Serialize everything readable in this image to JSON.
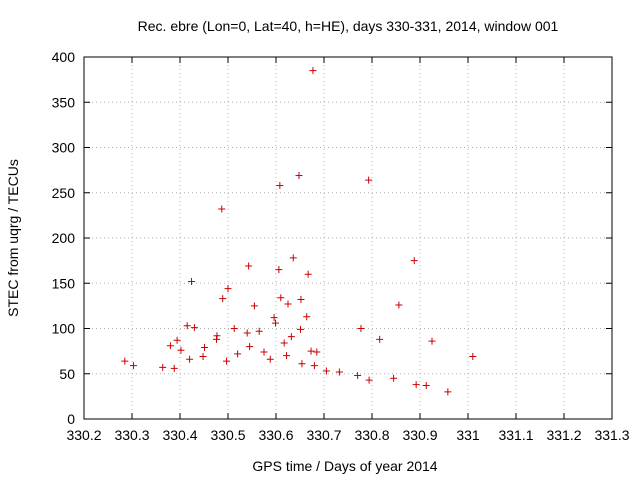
{
  "chart_data": {
    "type": "scatter",
    "title": "Rec. ebre (Lon=0, Lat=40, h=HE), days 330-331, 2014, window 001",
    "xlabel": "GPS time / Days of year 2014",
    "ylabel": "STEC from uqrg / TECUs",
    "xlim": [
      330.2,
      331.3
    ],
    "ylim": [
      0,
      400
    ],
    "xticks": [
      330.2,
      330.3,
      330.4,
      330.5,
      330.6,
      330.7,
      330.8,
      330.9,
      331,
      331.1,
      331.2,
      331.3
    ],
    "xtick_labels": [
      "330.2",
      "330.3",
      "330.4",
      "330.5",
      "330.6",
      "330.7",
      "330.8",
      "330.9",
      "331",
      "331.1",
      "331.2",
      "331.3"
    ],
    "yticks": [
      0,
      50,
      100,
      150,
      200,
      250,
      300,
      350,
      400
    ],
    "ytick_labels": [
      "0",
      "50",
      "100",
      "150",
      "200",
      "250",
      "300",
      "350",
      "400"
    ],
    "grid": true,
    "marker": "+",
    "color": "#cc0000",
    "series": [
      {
        "points": [
          [
            330.677,
            385
          ],
          [
            330.648,
            269
          ],
          [
            330.793,
            264
          ],
          [
            330.608,
            258
          ],
          [
            330.487,
            232
          ],
          [
            330.636,
            178
          ],
          [
            330.888,
            175
          ],
          [
            330.543,
            169
          ],
          [
            330.606,
            165
          ],
          [
            330.667,
            160
          ],
          [
            330.424,
            152
          ],
          [
            330.5,
            144
          ],
          [
            330.489,
            133
          ],
          [
            330.652,
            132
          ],
          [
            330.61,
            134
          ],
          [
            330.555,
            125
          ],
          [
            330.625,
            127
          ],
          [
            330.856,
            126
          ],
          [
            330.664,
            113
          ],
          [
            330.596,
            112
          ],
          [
            330.599,
            106
          ],
          [
            330.415,
            103
          ],
          [
            330.43,
            101
          ],
          [
            330.513,
            100
          ],
          [
            330.651,
            99
          ],
          [
            330.777,
            100
          ],
          [
            330.54,
            95
          ],
          [
            330.565,
            97
          ],
          [
            330.477,
            92
          ],
          [
            330.632,
            91
          ],
          [
            330.925,
            86
          ],
          [
            330.816,
            88
          ],
          [
            331.01,
            69
          ],
          [
            330.394,
            87
          ],
          [
            330.476,
            88
          ],
          [
            330.38,
            81
          ],
          [
            330.451,
            79
          ],
          [
            330.402,
            76
          ],
          [
            330.545,
            80
          ],
          [
            330.617,
            84
          ],
          [
            330.673,
            75
          ],
          [
            330.685,
            74
          ],
          [
            330.285,
            64
          ],
          [
            330.303,
            59
          ],
          [
            330.364,
            57
          ],
          [
            330.388,
            56
          ],
          [
            330.42,
            66
          ],
          [
            330.448,
            69
          ],
          [
            330.497,
            64
          ],
          [
            330.52,
            72
          ],
          [
            330.575,
            74
          ],
          [
            330.588,
            66
          ],
          [
            330.622,
            70
          ],
          [
            330.654,
            61
          ],
          [
            330.68,
            59
          ],
          [
            330.705,
            53
          ],
          [
            330.732,
            52
          ],
          [
            330.77,
            48
          ],
          [
            330.794,
            43
          ],
          [
            330.845,
            45
          ],
          [
            330.892,
            38
          ],
          [
            330.913,
            37
          ],
          [
            330.958,
            30
          ]
        ]
      }
    ]
  }
}
